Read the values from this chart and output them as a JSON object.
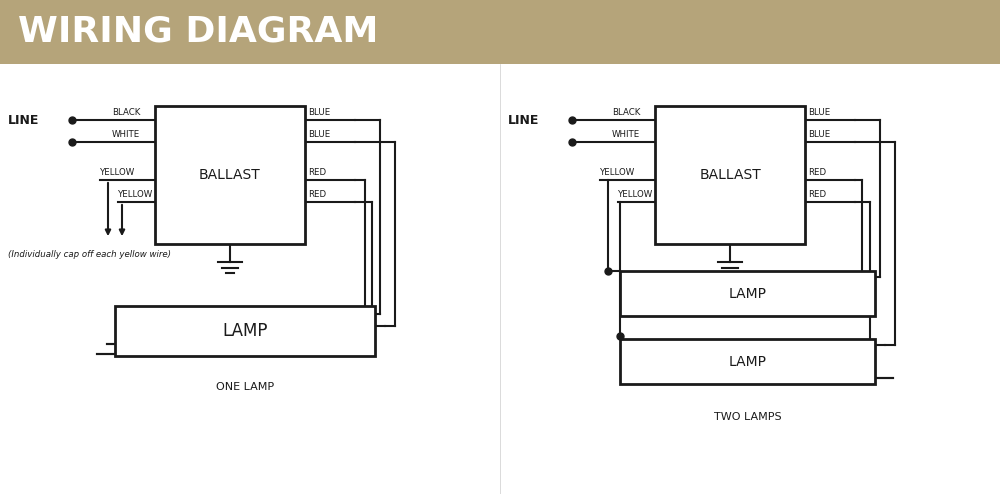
{
  "title": "WIRING DIAGRAM",
  "title_bg_color": "#b5a47a",
  "title_text_color": "#ffffff",
  "bg_color": "#ffffff",
  "diagram_color": "#1a1a1a",
  "left_label": "ONE LAMP",
  "right_label": "TWO LAMPS",
  "left_line_label": "LINE",
  "right_line_label": "LINE",
  "ballast_label": "BALLAST",
  "lamp_label": "LAMP",
  "cap_note": "(Individually cap off each yellow wire)"
}
